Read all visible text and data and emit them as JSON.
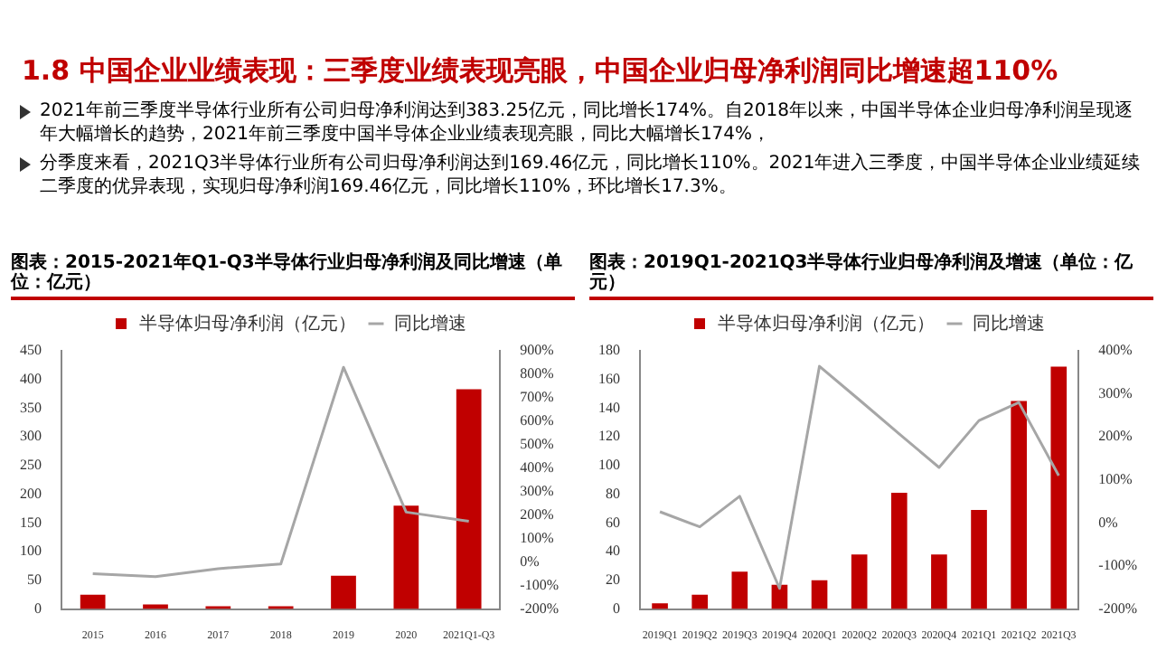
{
  "chart_data": [
    {
      "type": "bar",
      "title": "图表：2015-2021年Q1-Q3半导体行业归母净利润及同比增速（单位：亿元）",
      "annotations": [
        "1.8 中国企业业绩表现：三季度业绩表现亮眼，中国企业归母净利润同比增速超110%",
        "2021年前三季度半导体行业所有公司归母净利润达到383.25亿元，同比增长174%。自2018年以来，中国半导体企业归母净利润呈现逐年大幅增长的趋势，2021年前三季度中国半导体企业业绩表现亮眼，同比大幅增长174%，",
        "分季度来看，2021Q3半导体行业所有公司归母净利润达到169.46亿元，同比增长110%。2021年进入三季度，中国半导体企业业绩延续二季度的优异表现，实现归母净利润169.46亿元，同比增长110%，环比增长17.3%。"
      ],
      "categories": [
        "2015",
        "2016",
        "2017",
        "2018",
        "2019",
        "2020",
        "2021Q1-Q3"
      ],
      "series": [
        {
          "name": "半导体归母净利润（亿元）",
          "color": "#c00000",
          "values": [
            25,
            8,
            5,
            5,
            58,
            180,
            383
          ]
        },
        {
          "name": "同比增速",
          "type": "line",
          "axis": "y2",
          "color": "#a6a6a6",
          "values": [
            -49,
            -62,
            -28,
            -8,
            830,
            213,
            174
          ]
        }
      ],
      "ylim": [
        0,
        450
      ],
      "yticks": [
        0,
        50,
        100,
        150,
        200,
        250,
        300,
        350,
        400,
        450
      ],
      "y2lim": [
        -200,
        900
      ],
      "y2ticks": [
        {
          "value": -200,
          "label": "-200%"
        },
        {
          "value": -100,
          "label": "-100%"
        },
        {
          "value": 0,
          "label": "0%"
        },
        {
          "value": 100,
          "label": "100%"
        },
        {
          "value": 200,
          "label": "200%"
        },
        {
          "value": 300,
          "label": "300%"
        },
        {
          "value": 400,
          "label": "400%"
        },
        {
          "value": 500,
          "label": "500%"
        },
        {
          "value": 600,
          "label": "600%"
        },
        {
          "value": 700,
          "label": "700%"
        },
        {
          "value": 800,
          "label": "800%"
        },
        {
          "value": 900,
          "label": "900%"
        }
      ],
      "legend": "top",
      "grid": false,
      "marker": "none"
    },
    {
      "type": "bar",
      "title": "图表：2019Q1-2021Q3半导体行业归母净利润及增速（单位：亿元）",
      "categories": [
        "2019Q1",
        "2019Q2",
        "2019Q3",
        "2019Q4",
        "2020Q1",
        "2020Q2",
        "2020Q3",
        "2020Q4",
        "2021Q1",
        "2021Q2",
        "2021Q3"
      ],
      "series": [
        {
          "name": "半导体归母净利润（亿元）",
          "color": "#c00000",
          "values": [
            4,
            10,
            26,
            17,
            20,
            38,
            81,
            38,
            69,
            145,
            169
          ]
        },
        {
          "name": "同比增速",
          "type": "line",
          "axis": "y2",
          "color": "#a6a6a6",
          "values": [
            26,
            -9,
            62,
            -152,
            364,
            286,
            207,
            129,
            238,
            280,
            110
          ]
        }
      ],
      "ylim": [
        0,
        180
      ],
      "yticks": [
        0,
        20,
        40,
        60,
        80,
        100,
        120,
        140,
        160,
        180
      ],
      "y2lim": [
        -200,
        400
      ],
      "y2ticks": [
        {
          "value": -200,
          "label": "-200%"
        },
        {
          "value": -100,
          "label": "-100%"
        },
        {
          "value": 0,
          "label": "0%"
        },
        {
          "value": 100,
          "label": "100%"
        },
        {
          "value": 200,
          "label": "200%"
        },
        {
          "value": 300,
          "label": "300%"
        },
        {
          "value": 400,
          "label": "400%"
        }
      ],
      "legend": "top",
      "grid": false,
      "marker": "none"
    }
  ]
}
